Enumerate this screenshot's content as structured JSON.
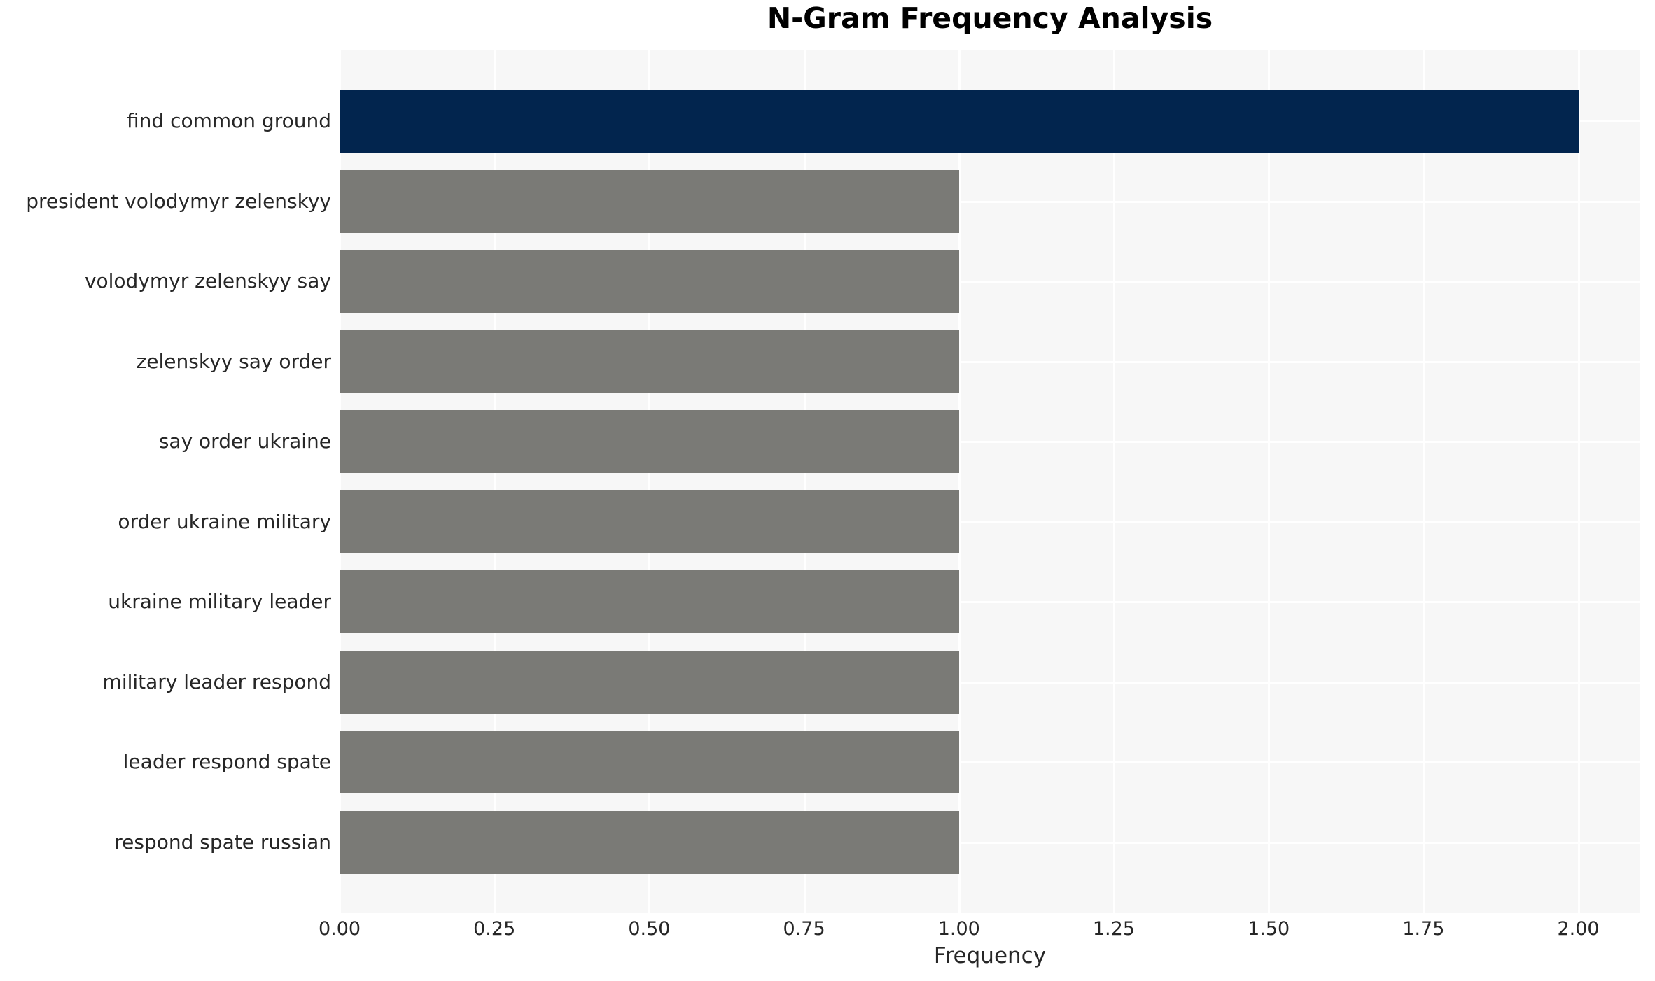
{
  "page": {
    "background": "#ffffff"
  },
  "chart_data": {
    "type": "bar",
    "orientation": "horizontal",
    "title": "N-Gram Frequency Analysis",
    "xlabel": "Frequency",
    "ylabel": "",
    "categories": [
      "find common ground",
      "president volodymyr zelenskyy",
      "volodymyr zelenskyy say",
      "zelenskyy say order",
      "say order ukraine",
      "order ukraine military",
      "ukraine military leader",
      "military leader respond",
      "leader respond spate",
      "respond spate russian"
    ],
    "values": [
      2,
      1,
      1,
      1,
      1,
      1,
      1,
      1,
      1,
      1
    ],
    "highlight_index": 0,
    "xlim": [
      0,
      2.1
    ],
    "xticks": [
      0,
      0.25,
      0.5,
      0.75,
      1.0,
      1.25,
      1.5,
      1.75,
      2.0
    ],
    "xtick_labels": [
      "0.00",
      "0.25",
      "0.50",
      "0.75",
      "1.00",
      "1.25",
      "1.50",
      "1.75",
      "2.00"
    ],
    "grid": true,
    "legend": false,
    "colors": {
      "highlight_bar": "#02254e",
      "default_bar": "#7a7a76",
      "panel_background": "#f7f7f7",
      "gridline": "#ffffff",
      "tick_text": "#262626",
      "title_text": "#000000"
    }
  }
}
